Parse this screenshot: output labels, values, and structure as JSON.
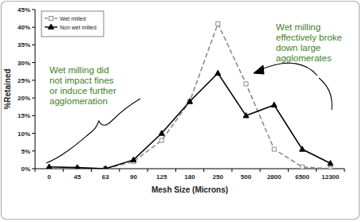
{
  "chart_data": {
    "type": "line",
    "x_label": "Mesh Size (Microns)",
    "y_label": "%Retained",
    "categories": [
      "0",
      "45",
      "63",
      "90",
      "125",
      "180",
      "250",
      "500",
      "2800",
      "6500",
      "12300"
    ],
    "series": [
      {
        "name": "Wet milled",
        "color": "#8c8c8c",
        "marker": "square",
        "line_style": "dashed",
        "values": [
          0,
          0,
          0,
          2,
          8,
          19,
          41,
          24,
          5.5,
          0.5,
          0
        ]
      },
      {
        "name": "Non wet milled",
        "color": "#000000",
        "marker": "triangle",
        "line_style": "solid",
        "values": [
          0.5,
          0.3,
          0,
          2.5,
          10,
          19,
          27,
          15,
          18,
          5.5,
          1.5
        ]
      }
    ],
    "ylim": [
      0,
      45
    ],
    "yticks": [
      {
        "value": 0,
        "label": "0%"
      },
      {
        "value": 5,
        "label": "5%"
      },
      {
        "value": 10,
        "label": "10%"
      },
      {
        "value": 15,
        "label": "15%"
      },
      {
        "value": 20,
        "label": "20%"
      },
      {
        "value": 25,
        "label": "25%"
      },
      {
        "value": 30,
        "label": "30%"
      },
      {
        "value": 35,
        "label": "35%"
      },
      {
        "value": 40,
        "label": "40%"
      },
      {
        "value": 45,
        "label": "45%"
      }
    ],
    "grid": false,
    "legend": "upper left",
    "annotations": [
      {
        "lines": [
          "Wet milling did",
          "not impact fines",
          "or induce further",
          "agglomeration"
        ]
      },
      {
        "lines": [
          "Wet milling",
          "effectively broke",
          "down large",
          "agglomerates"
        ]
      }
    ]
  }
}
